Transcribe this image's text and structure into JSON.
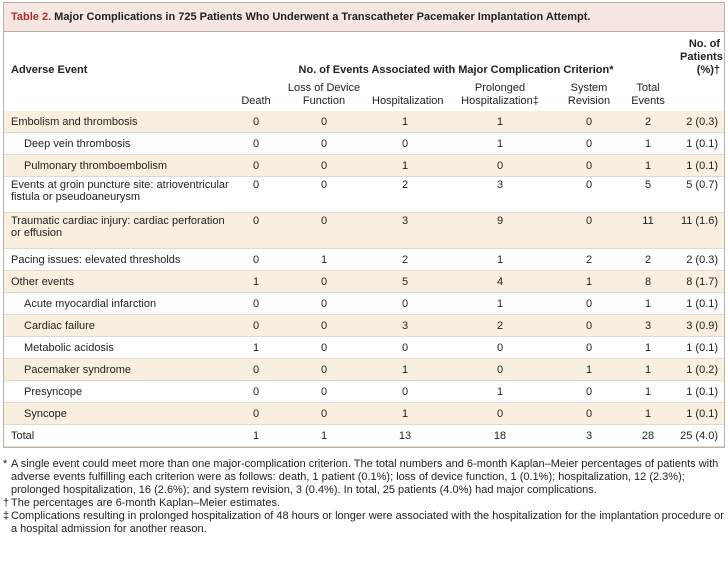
{
  "title_label": "Table 2.",
  "title": "Major Complications in 725 Patients Who Underwent a Transcatheter Pacemaker Implantation Attempt.",
  "table": {
    "header": {
      "adverse_event": "Adverse Event",
      "events_group": "No. of Events Associated with Major Complication Criterion*",
      "patients": "No. of Patients (%)†",
      "columns": [
        "Death",
        "Loss of Device Function",
        "Hospitalization",
        "Prolonged Hospitalization‡",
        "System Revision",
        "Total Events"
      ]
    },
    "rows": [
      [
        "Embolism and thrombosis",
        0,
        0,
        1,
        1,
        0,
        2,
        "2 (0.3)"
      ],
      [
        "Deep vein thrombosis",
        0,
        0,
        0,
        1,
        0,
        1,
        "1 (0.1)"
      ],
      [
        "Pulmonary thromboembolism",
        0,
        0,
        1,
        0,
        0,
        1,
        "1 (0.1)"
      ],
      [
        "Events at groin puncture site: atrioventricular fistula or pseudoaneurysm",
        0,
        0,
        2,
        3,
        0,
        5,
        "5 (0.7)"
      ],
      [
        "Traumatic cardiac injury: cardiac perforation or effusion",
        0,
        0,
        3,
        9,
        0,
        11,
        "11 (1.6)"
      ],
      [
        "Pacing issues: elevated thresholds",
        0,
        1,
        2,
        1,
        2,
        2,
        "2 (0.3)"
      ],
      [
        "Other events",
        1,
        0,
        5,
        4,
        1,
        8,
        "8 (1.7)"
      ],
      [
        "Acute myocardial infarction",
        0,
        0,
        0,
        1,
        0,
        1,
        "1 (0.1)"
      ],
      [
        "Cardiac failure",
        0,
        0,
        3,
        2,
        0,
        3,
        "3 (0.9)"
      ],
      [
        "Metabolic acidosis",
        1,
        0,
        0,
        0,
        0,
        1,
        "1 (0.1)"
      ],
      [
        "Pacemaker syndrome",
        0,
        0,
        1,
        0,
        1,
        1,
        "1 (0.2)"
      ],
      [
        "Presyncope",
        0,
        0,
        0,
        1,
        0,
        1,
        "1 (0.1)"
      ],
      [
        "Syncope",
        0,
        0,
        1,
        0,
        0,
        1,
        "1 (0.1)"
      ],
      [
        "Total",
        1,
        1,
        13,
        18,
        3,
        28,
        "25 (4.0)"
      ]
    ]
  },
  "footnotes": [
    {
      "marker": "*",
      "text": "A single event could meet more than one major-complication criterion. The total numbers and 6-month Kaplan–Meier percentages of patients with adverse events fulfilling each criterion were as follows: death, 1 patient (0.1%); loss of device function, 1 (0.1%); hospitalization, 12 (2.3%); prolonged hospitalization, 16 (2.6%); and system revision, 3 (0.4%). In total, 25 patients (4.0%) had major complications."
    },
    {
      "marker": "†",
      "text": "The percentages are 6-month Kaplan–Meier estimates."
    },
    {
      "marker": "‡",
      "text": "Complications resulting in prolonged hospitalization of 48 hours or longer were associated with the hospitalization for the implantation procedure or a hospital admission for another reason."
    }
  ]
}
